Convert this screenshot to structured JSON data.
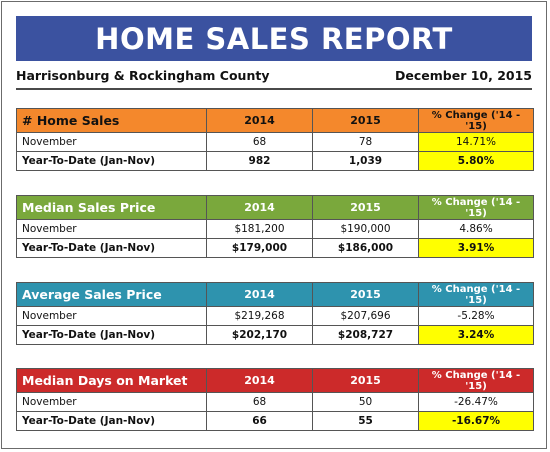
{
  "title": "HOME SALES REPORT",
  "region": "Harrisonburg & Rockingham County",
  "date": "December 10, 2015",
  "colors": {
    "banner": "#3b52a0",
    "home_sales": "#f4882c",
    "median_price": "#7aa83c",
    "average_price": "#2e93ae",
    "days_on_market": "#cc2a2a",
    "highlight": "#ffff00"
  },
  "tables": [
    {
      "title": "# Home Sales",
      "col_2014": "2014",
      "col_2015": "2015",
      "col_change": "% Change ('14 - '15)",
      "rows": [
        {
          "label": "November",
          "v2014": "68",
          "v2015": "78",
          "change": "14.71%",
          "highlight": true
        },
        {
          "label": "Year-To-Date (Jan-Nov)",
          "v2014": "982",
          "v2015": "1,039",
          "change": "5.80%",
          "highlight": true
        }
      ]
    },
    {
      "title": "Median Sales Price",
      "col_2014": "2014",
      "col_2015": "2015",
      "col_change": "% Change ('14 - '15)",
      "rows": [
        {
          "label": "November",
          "v2014": "$181,200",
          "v2015": "$190,000",
          "change": "4.86%",
          "highlight": false
        },
        {
          "label": "Year-To-Date (Jan-Nov)",
          "v2014": "$179,000",
          "v2015": "$186,000",
          "change": "3.91%",
          "highlight": true
        }
      ]
    },
    {
      "title": "Average Sales Price",
      "col_2014": "2014",
      "col_2015": "2015",
      "col_change": "% Change ('14 - '15)",
      "rows": [
        {
          "label": "November",
          "v2014": "$219,268",
          "v2015": "$207,696",
          "change": "-5.28%",
          "highlight": false
        },
        {
          "label": "Year-To-Date (Jan-Nov)",
          "v2014": "$202,170",
          "v2015": "$208,727",
          "change": "3.24%",
          "highlight": true
        }
      ]
    },
    {
      "title": "Median Days on Market",
      "col_2014": "2014",
      "col_2015": "2015",
      "col_change": "% Change ('14 - '15)",
      "rows": [
        {
          "label": "November",
          "v2014": "68",
          "v2015": "50",
          "change": "-26.47%",
          "highlight": false
        },
        {
          "label": "Year-To-Date (Jan-Nov)",
          "v2014": "66",
          "v2015": "55",
          "change": "-16.67%",
          "highlight": true
        }
      ]
    }
  ]
}
